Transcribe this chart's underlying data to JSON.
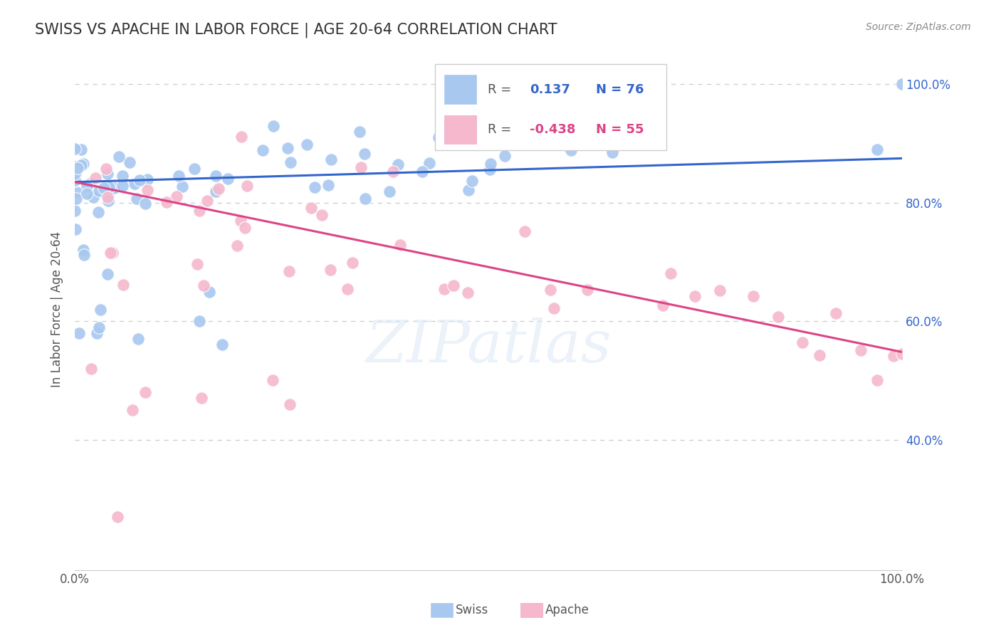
{
  "title": "SWISS VS APACHE IN LABOR FORCE | AGE 20-64 CORRELATION CHART",
  "source": "Source: ZipAtlas.com",
  "ylabel": "In Labor Force | Age 20-64",
  "xlim": [
    0.0,
    1.0
  ],
  "ylim": [
    0.18,
    1.06
  ],
  "ytick_vals": [
    0.4,
    0.6,
    0.8,
    1.0
  ],
  "ytick_labels": [
    "40.0%",
    "60.0%",
    "80.0%",
    "100.0%"
  ],
  "background_color": "#ffffff",
  "grid_color": "#cccccc",
  "swiss_color": "#a8c8f0",
  "apache_color": "#f5b8cc",
  "swiss_line_color": "#3366cc",
  "apache_line_color": "#dd4488",
  "swiss_r": 0.137,
  "swiss_n": 76,
  "apache_r": -0.438,
  "apache_n": 55,
  "watermark": "ZIPatlas",
  "swiss_line_y0": 0.835,
  "swiss_line_y1": 0.875,
  "apache_line_y0": 0.835,
  "apache_line_y1": 0.548
}
